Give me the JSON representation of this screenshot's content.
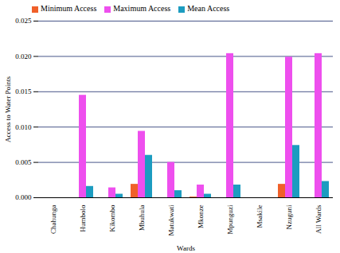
{
  "chart_data": {
    "type": "bar",
    "x_label": "Wards",
    "y_label": "Access to Water Points",
    "categories": [
      "Chahunga",
      "Humbolo",
      "Kikombo",
      "Mbuhula",
      "Matukwati",
      "Mkonze",
      "Mpunguzi",
      "Msakile",
      "Nzuguni",
      "All Wards"
    ],
    "series": [
      {
        "name": "Minimum Access",
        "color": "#f0602a",
        "values": [
          0,
          0,
          0,
          0.0019,
          0,
          0.0001,
          0,
          0,
          0.0019,
          0
        ]
      },
      {
        "name": "Maximum Access",
        "color": "#ee4fee",
        "values": [
          0,
          0.0145,
          0.0014,
          0.0094,
          0.005,
          0.0018,
          0.0204,
          0,
          0.0199,
          0.0204
        ]
      },
      {
        "name": "Mean Access",
        "color": "#1c9cc0",
        "values": [
          0,
          0.0016,
          0.0005,
          0.006,
          0.001,
          0.0005,
          0.0018,
          0,
          0.0074,
          0.0023
        ]
      }
    ],
    "ylim": [
      0,
      0.025
    ],
    "yticks": [
      {
        "value": 0,
        "label": "0.000"
      },
      {
        "value": 0.005,
        "label": "0.005"
      },
      {
        "value": 0.01,
        "label": "0.010"
      },
      {
        "value": 0.015,
        "label": "0.015"
      },
      {
        "value": 0.02,
        "label": "0.020"
      },
      {
        "value": 0.025,
        "label": "0.025"
      }
    ],
    "grid": true,
    "legend": "top-left"
  }
}
